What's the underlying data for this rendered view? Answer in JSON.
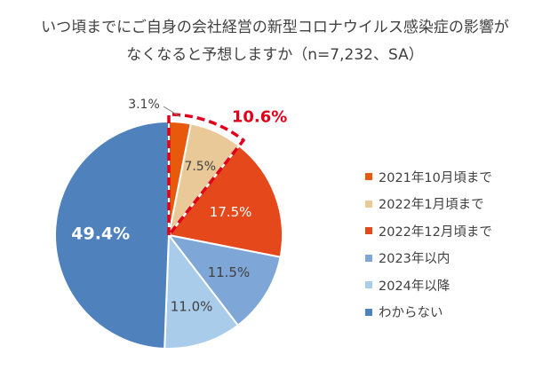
{
  "title": {
    "line1": "いつ頃までにご自身の会社経営の新型コロナウイルス感染症の影響が",
    "line2": "なくなると予想しますか（n=7,232、SA）"
  },
  "chart_data": {
    "type": "pie",
    "categories": [
      "2021年10月頃まで",
      "2022年1月頃まで",
      "2022年12月頃まで",
      "2023年以内",
      "2024年以降",
      "わからない"
    ],
    "values": [
      3.1,
      7.5,
      17.5,
      11.5,
      11.0,
      49.4
    ],
    "labels": [
      "3.1%",
      "7.5%",
      "17.5%",
      "11.5%",
      "11.0%",
      "49.4%"
    ],
    "colors": [
      "#E8590C",
      "#E9C998",
      "#E5481A",
      "#7EA6D6",
      "#A9CCEB",
      "#4F81BD"
    ],
    "start_angle_deg": 0,
    "direction": "clockwise",
    "legend_position": "right",
    "highlight": {
      "slices": [
        0,
        1
      ],
      "label": "10.6%",
      "color": "#E0001B",
      "style": "dashed-outline"
    }
  }
}
